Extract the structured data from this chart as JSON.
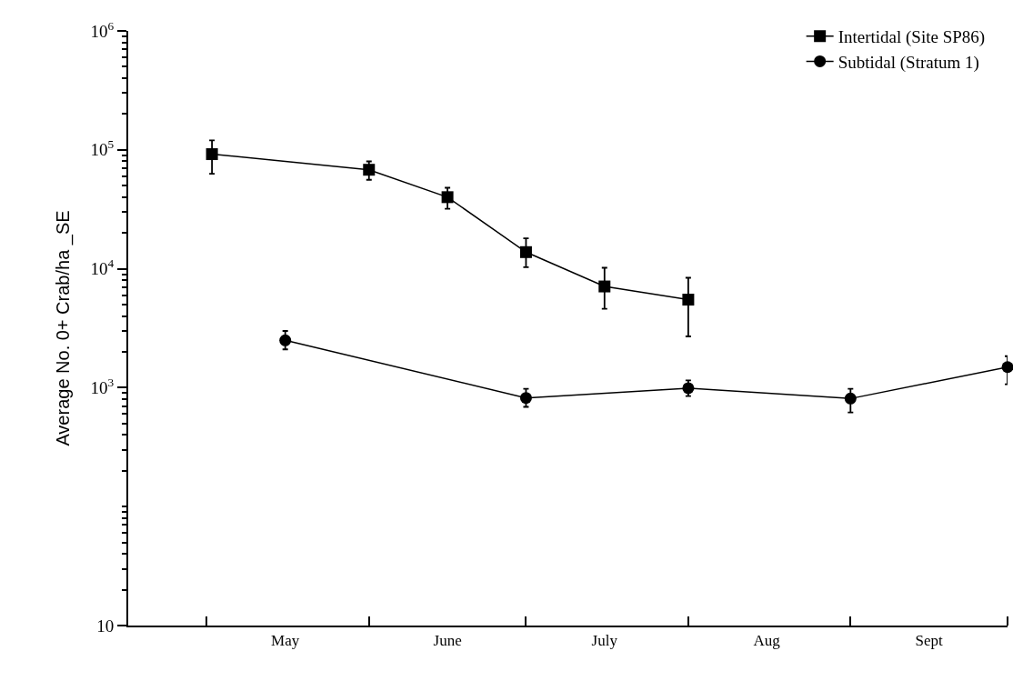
{
  "chart_data": {
    "type": "line",
    "ylabel": "Average No. 0+ Crab/ha _SE",
    "log": "y",
    "grid": false,
    "legend": "top right",
    "line_style": "solid",
    "xlim": [
      "--04-16",
      "--10-01"
    ],
    "xticks": [
      {
        "value": "--05-01",
        "label": null
      },
      {
        "value": "--05-16",
        "label": "May"
      },
      {
        "value": "--06-01",
        "label": null
      },
      {
        "value": "--06-16",
        "label": "June"
      },
      {
        "value": "--07-01",
        "label": null
      },
      {
        "value": "--07-16",
        "label": "July"
      },
      {
        "value": "--08-01",
        "label": null
      },
      {
        "value": "--08-16",
        "label": "Aug"
      },
      {
        "value": "--09-01",
        "label": null
      },
      {
        "value": "--09-16",
        "label": "Sept"
      },
      {
        "value": "--10-01",
        "label": null
      }
    ],
    "ylim": [
      10,
      1000000
    ],
    "yticks": [
      10,
      {
        "value": 1000,
        "label": "10$^{3}$"
      },
      {
        "value": 10000,
        "label": "10$^{4}$"
      },
      {
        "value": 100000,
        "label": "10$^{5}$"
      },
      {
        "value": 1000000,
        "label": "10$^{6}$"
      }
    ],
    "series": [
      {
        "name": "Intertidal (Site SP86)",
        "color": "#000000",
        "marker": "square",
        "x": [
          "--05-02",
          "--06-01",
          "--06-16",
          "--07-01",
          "--07-16",
          "--08-01"
        ],
        "values": [
          92000,
          68000,
          40000,
          13800,
          7100,
          5500
        ],
        "errors": [
          [
            63000,
            120000
          ],
          [
            56000,
            80000
          ],
          [
            32000,
            48000
          ],
          [
            10300,
            18000
          ],
          [
            4600,
            10200
          ],
          [
            2700,
            8400
          ]
        ]
      },
      {
        "name": "Subtidal (Stratum 1)",
        "color": "#000000",
        "marker": "circle",
        "x": [
          "--05-16",
          "--07-01",
          "--08-01",
          "--09-01",
          "--10-01"
        ],
        "values": [
          2500,
          820,
          990,
          810,
          1490
        ],
        "errors": [
          [
            2100,
            3000
          ],
          [
            690,
            980
          ],
          [
            850,
            1150
          ],
          [
            620,
            980
          ],
          [
            1070,
            1840
          ]
        ]
      }
    ]
  }
}
